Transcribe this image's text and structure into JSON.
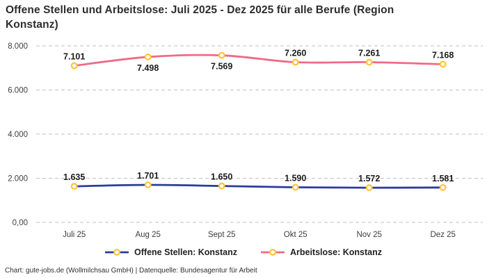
{
  "chart_data": {
    "type": "line",
    "title": "Offene Stellen und Arbeitslose: Juli 2025 - Dez 2025 für alle Berufe (Region Konstanz)",
    "categories": [
      "Juli 25",
      "Aug 25",
      "Sept 25",
      "Okt 25",
      "Nov 25",
      "Dez 25"
    ],
    "series": [
      {
        "name": "Offene Stellen: Konstanz",
        "color": "#2b3b9b",
        "values": [
          1635,
          1701,
          1650,
          1590,
          1572,
          1581
        ],
        "labels": [
          "1.635",
          "1.701",
          "1.650",
          "1.590",
          "1.572",
          "1.581"
        ],
        "label_positions": [
          "above",
          "above",
          "above",
          "above",
          "above",
          "above"
        ]
      },
      {
        "name": "Arbeitslose: Konstanz",
        "color": "#f06a86",
        "values": [
          7101,
          7498,
          7569,
          7260,
          7261,
          7168
        ],
        "labels": [
          "7.101",
          "7.498",
          "7.569",
          "7.260",
          "7.261",
          "7.168"
        ],
        "label_positions": [
          "above",
          "below",
          "below",
          "above",
          "above",
          "above"
        ]
      }
    ],
    "y_axis": {
      "min": 0,
      "max": 8000,
      "ticks": [
        {
          "value": 0,
          "label": "0,00"
        },
        {
          "value": 2000,
          "label": "2.000"
        },
        {
          "value": 4000,
          "label": "4.000"
        },
        {
          "value": 6000,
          "label": "6.000"
        },
        {
          "value": 8000,
          "label": "8.000"
        }
      ]
    },
    "grid": "horizontal-dashed",
    "grid_color": "#bfbfbf",
    "marker": {
      "fill": "#ffffff",
      "stroke": "#ffc53e"
    },
    "legend_position": "bottom",
    "footer": "Chart: gute-jobs.de (Wollmilchsau GmbH) | Datenquelle: Bundesagentur für Arbeit"
  }
}
